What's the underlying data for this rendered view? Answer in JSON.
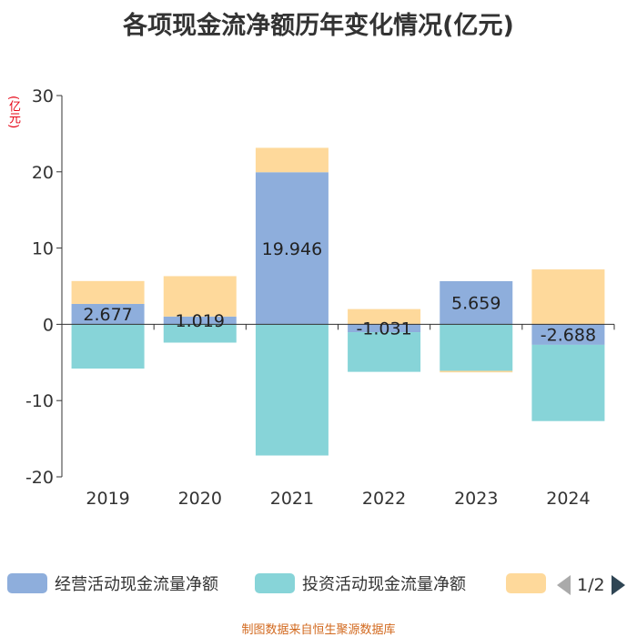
{
  "title": "各项现金流净额历年变化情况(亿元)",
  "unit_label": "(亿元)",
  "source": "制图数据来自恒生聚源数据库",
  "pager": {
    "text": "1/2"
  },
  "legend": [
    {
      "name": "经营活动现金流量净额",
      "color": "#8eaedc"
    },
    {
      "name": "投资活动现金流量净额",
      "color": "#87d4d8"
    },
    {
      "name": "",
      "color": "#fed99b"
    }
  ],
  "chart_data": {
    "type": "bar",
    "stacked": true,
    "categories": [
      "2019",
      "2020",
      "2021",
      "2022",
      "2023",
      "2024"
    ],
    "ylim": [
      -20,
      30
    ],
    "yticks": [
      -20,
      -10,
      0,
      10,
      20,
      30
    ],
    "ylabel": "(亿元)",
    "series": [
      {
        "name": "经营活动现金流量净额",
        "color": "#8eaedc",
        "values": [
          2.677,
          1.019,
          19.946,
          -1.031,
          5.659,
          -2.688
        ],
        "labels": [
          "2.677",
          "1.019",
          "19.946",
          "-1.031",
          "5.659",
          "-2.688"
        ]
      },
      {
        "name": "投资活动现金流量净额",
        "color": "#87d4d8",
        "values": [
          -5.8,
          -2.4,
          -17.2,
          -5.2,
          -6.1,
          -10.0
        ]
      },
      {
        "name": "",
        "color": "#fed99b",
        "values": [
          3.0,
          5.3,
          3.2,
          2.0,
          -0.2,
          7.2
        ]
      }
    ]
  }
}
